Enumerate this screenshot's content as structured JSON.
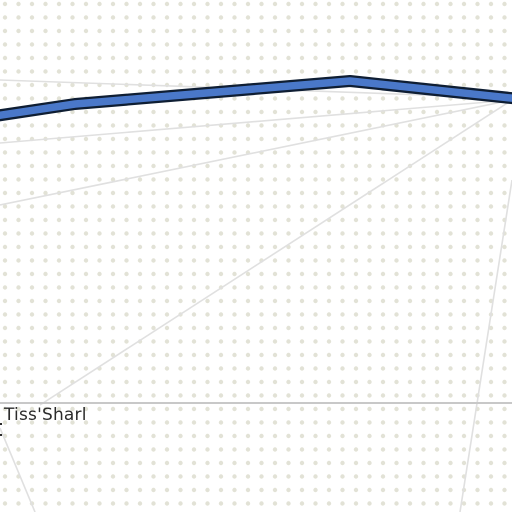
{
  "map": {
    "place_label": "Tiss'Sharl",
    "colors": {
      "background": "#ffffff",
      "dot_pattern": "#e2e2d6",
      "thin_lines": "#e0e0e0",
      "boundary_line": "#c8c8c8",
      "route_fill": "#4a78c9",
      "route_outline": "#0f1e33"
    }
  }
}
